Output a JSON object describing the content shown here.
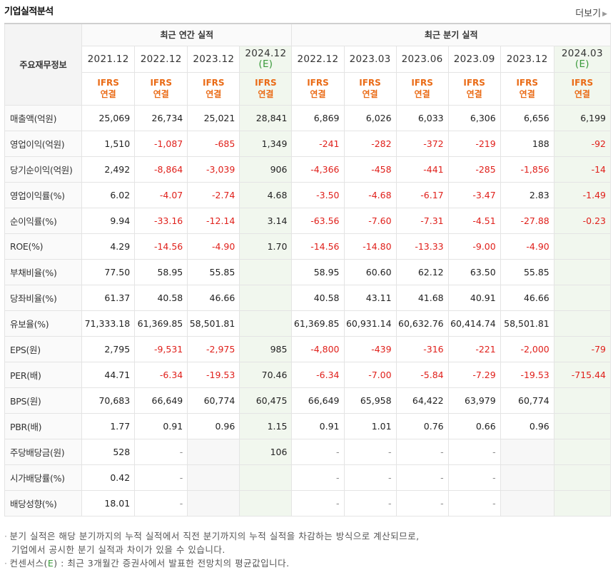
{
  "title": "기업실적분석",
  "more_label": "더보기",
  "header": {
    "label_column": "주요재무정보",
    "annual_group": "최근 연간 실적",
    "quarterly_group": "최근 분기 실적",
    "ifrs_line1": "IFRS",
    "ifrs_line2": "연결",
    "est_mark": "(E)",
    "periods": [
      {
        "period": "2021.12",
        "est": false
      },
      {
        "period": "2022.12",
        "est": false
      },
      {
        "period": "2023.12",
        "est": false
      },
      {
        "period": "2024.12",
        "est": true
      },
      {
        "period": "2022.12",
        "est": false
      },
      {
        "period": "2023.03",
        "est": false
      },
      {
        "period": "2023.06",
        "est": false
      },
      {
        "period": "2023.09",
        "est": false
      },
      {
        "period": "2023.12",
        "est": false
      },
      {
        "period": "2024.03",
        "est": true
      }
    ]
  },
  "rows": [
    {
      "label": "매출액(억원)",
      "values": [
        "25,069",
        "26,734",
        "25,021",
        "28,841",
        "6,869",
        "6,026",
        "6,033",
        "6,306",
        "6,656",
        "6,199"
      ]
    },
    {
      "label": "영업이익(억원)",
      "values": [
        "1,510",
        "-1,087",
        "-685",
        "1,349",
        "-241",
        "-282",
        "-372",
        "-219",
        "188",
        "-92"
      ]
    },
    {
      "label": "당기순이익(억원)",
      "values": [
        "2,492",
        "-8,864",
        "-3,039",
        "906",
        "-4,366",
        "-458",
        "-441",
        "-285",
        "-1,856",
        "-14"
      ]
    },
    {
      "label": "영업이익률(%)",
      "values": [
        "6.02",
        "-4.07",
        "-2.74",
        "4.68",
        "-3.50",
        "-4.68",
        "-6.17",
        "-3.47",
        "2.83",
        "-1.49"
      ]
    },
    {
      "label": "순이익률(%)",
      "values": [
        "9.94",
        "-33.16",
        "-12.14",
        "3.14",
        "-63.56",
        "-7.60",
        "-7.31",
        "-4.51",
        "-27.88",
        "-0.23"
      ]
    },
    {
      "label": "ROE(%)",
      "values": [
        "4.29",
        "-14.56",
        "-4.90",
        "1.70",
        "-14.56",
        "-14.80",
        "-13.33",
        "-9.00",
        "-4.90",
        ""
      ]
    },
    {
      "label": "부채비율(%)",
      "values": [
        "77.50",
        "58.95",
        "55.85",
        "",
        "58.95",
        "60.60",
        "62.12",
        "63.50",
        "55.85",
        ""
      ]
    },
    {
      "label": "당좌비율(%)",
      "values": [
        "61.37",
        "40.58",
        "46.66",
        "",
        "40.58",
        "43.11",
        "41.68",
        "40.91",
        "46.66",
        ""
      ]
    },
    {
      "label": "유보율(%)",
      "values": [
        "71,333.18",
        "61,369.85",
        "58,501.81",
        "",
        "61,369.85",
        "60,931.14",
        "60,632.76",
        "60,414.74",
        "58,501.81",
        ""
      ]
    },
    {
      "label": "EPS(원)",
      "values": [
        "2,795",
        "-9,531",
        "-2,975",
        "985",
        "-4,800",
        "-439",
        "-316",
        "-221",
        "-2,000",
        "-79"
      ]
    },
    {
      "label": "PER(배)",
      "values": [
        "44.71",
        "-6.34",
        "-19.53",
        "70.46",
        "-6.34",
        "-7.00",
        "-5.84",
        "-7.29",
        "-19.53",
        "-715.44"
      ]
    },
    {
      "label": "BPS(원)",
      "values": [
        "70,683",
        "66,649",
        "60,774",
        "60,475",
        "66,649",
        "65,958",
        "64,422",
        "63,979",
        "60,774",
        ""
      ]
    },
    {
      "label": "PBR(배)",
      "values": [
        "1.77",
        "0.91",
        "0.96",
        "1.15",
        "0.91",
        "1.01",
        "0.76",
        "0.66",
        "0.96",
        ""
      ]
    },
    {
      "label": "주당배당금(원)",
      "values": [
        "528",
        "-",
        "",
        "106",
        "-",
        "-",
        "-",
        "-",
        "",
        ""
      ]
    },
    {
      "label": "시가배당률(%)",
      "values": [
        "0.42",
        "-",
        "",
        "",
        "-",
        "-",
        "-",
        "-",
        "",
        ""
      ]
    },
    {
      "label": "배당성향(%)",
      "values": [
        "18.01",
        "-",
        "",
        "",
        "-",
        "-",
        "-",
        "-",
        "",
        ""
      ]
    }
  ],
  "group_break_rows": [
    3,
    6,
    9,
    13
  ],
  "notes": {
    "line1": "분기 실적은 해당 분기까지의 누적 실적에서 직전 분기까지의 누적 실적을 차감하는 방식으로 계산되므로,",
    "line2": "기업에서 공시한 분기 실적과 차이가 있을 수 있습니다.",
    "line3_prefix": "컨센서스(",
    "line3_mark": "E",
    "line3_suffix": ") : 최근 3개월간 증권사에서 발표한 전망치의 평균값입니다."
  },
  "colors": {
    "negative": "#e0201b",
    "ifrs": "#ea6b16",
    "estimate_bg": "#f1f7ee",
    "estimate_mark": "#3a9a3a"
  }
}
